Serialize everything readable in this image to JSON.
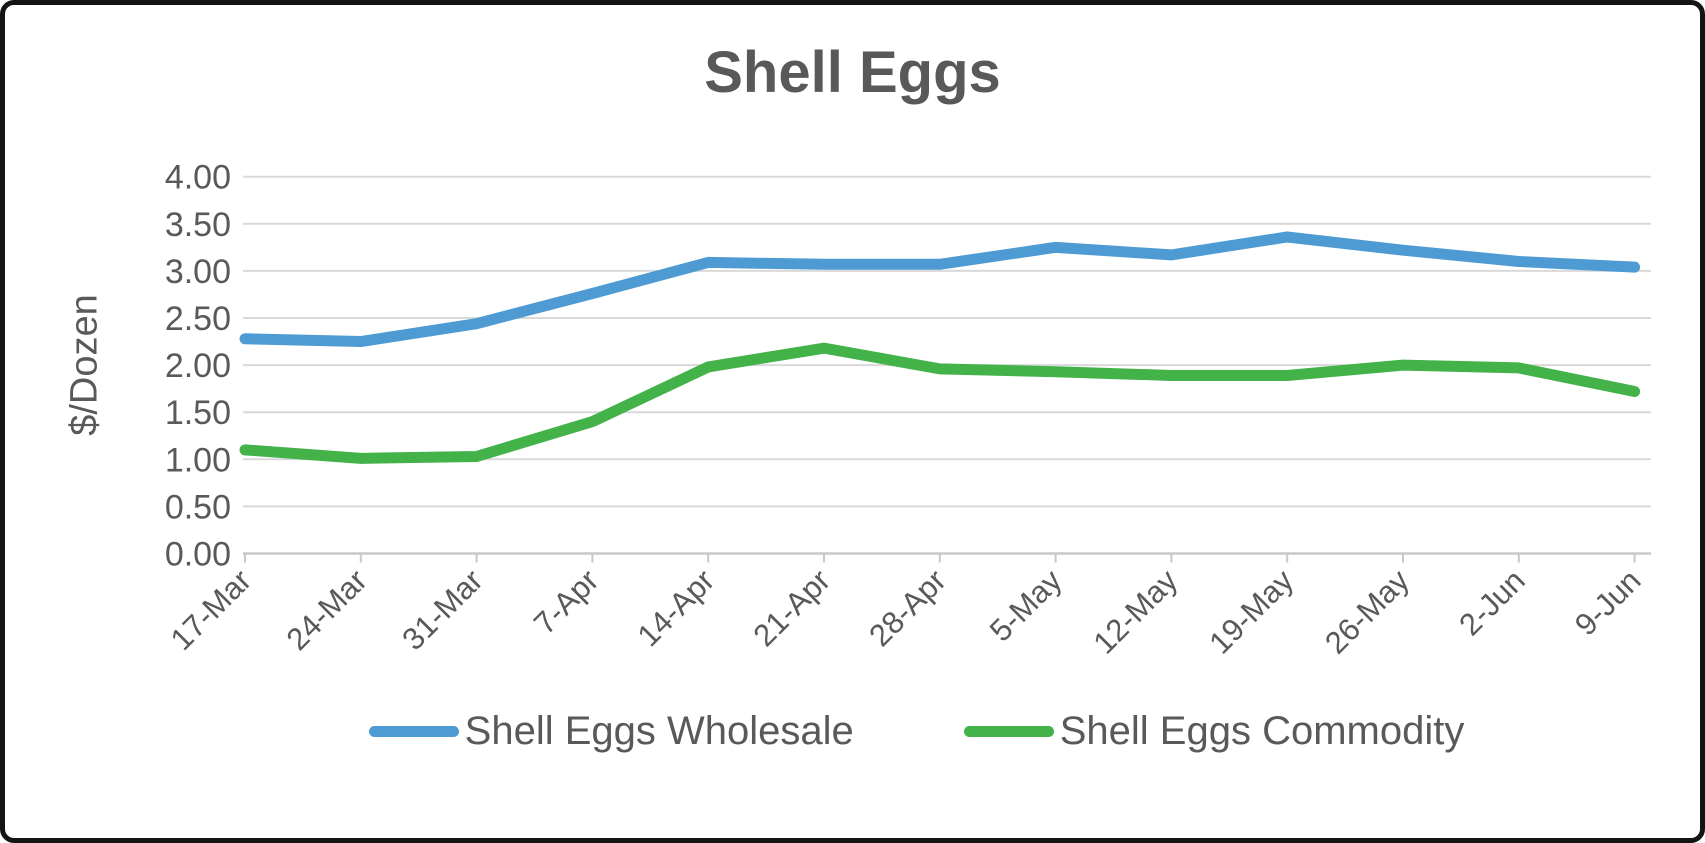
{
  "chart_data": {
    "type": "line",
    "title": "Shell Eggs",
    "ylabel": "$/Dozen",
    "xlabel": "",
    "ylim": [
      0.0,
      4.0
    ],
    "ytick_step": 0.5,
    "ytick_decimals": 2,
    "grid": "horizontal",
    "legend_position": "bottom",
    "categories": [
      "17-Mar",
      "24-Mar",
      "31-Mar",
      "7-Apr",
      "14-Apr",
      "21-Apr",
      "28-Apr",
      "5-May",
      "12-May",
      "19-May",
      "26-May",
      "2-Jun",
      "9-Jun"
    ],
    "series": [
      {
        "name": "Shell Eggs Wholesale",
        "color": "#4E9BD4",
        "values": [
          2.28,
          2.25,
          2.44,
          2.76,
          3.09,
          3.07,
          3.07,
          3.25,
          3.17,
          3.36,
          3.22,
          3.1,
          3.04
        ]
      },
      {
        "name": "Shell Eggs Commodity",
        "color": "#42B249",
        "values": [
          1.1,
          1.01,
          1.03,
          1.4,
          1.98,
          2.18,
          1.96,
          1.93,
          1.89,
          1.89,
          2.0,
          1.97,
          1.72
        ]
      }
    ]
  },
  "colors": {
    "text": "#595959",
    "gridline": "#D9D9D9",
    "axis_line": "#C8C8C8",
    "frame_border": "#141414",
    "background": "#FFFFFF"
  }
}
